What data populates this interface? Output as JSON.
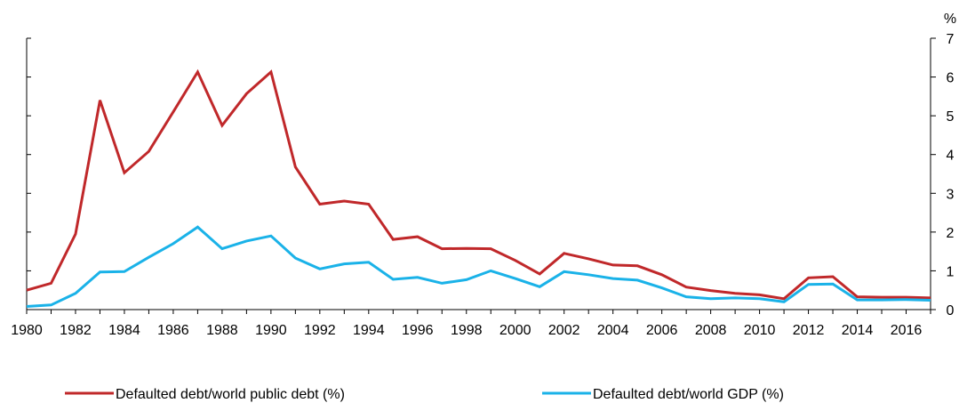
{
  "chart_data": {
    "type": "line",
    "title": "",
    "xlabel": "",
    "ylabel": "%",
    "ylim": [
      0,
      7
    ],
    "y_ticks": [
      "0",
      "1",
      "2",
      "3",
      "4",
      "5",
      "6",
      "7"
    ],
    "x_tick_labels": [
      "1980",
      "1982",
      "1984",
      "1986",
      "1988",
      "1990",
      "1992",
      "1994",
      "1996",
      "1998",
      "2000",
      "2002",
      "2004",
      "2006",
      "2008",
      "2010",
      "2012",
      "2014",
      "2016"
    ],
    "x": [
      1980,
      1981,
      1982,
      1983,
      1984,
      1985,
      1986,
      1987,
      1988,
      1989,
      1990,
      1991,
      1992,
      1993,
      1994,
      1995,
      1996,
      1997,
      1998,
      1999,
      2000,
      2001,
      2002,
      2003,
      2004,
      2005,
      2006,
      2007,
      2008,
      2009,
      2010,
      2011,
      2012,
      2013,
      2014,
      2015,
      2016,
      2017
    ],
    "grid": false,
    "legend_position": "bottom",
    "series": [
      {
        "name": "Defaulted debt/world public debt (%)",
        "color": "#c0282a",
        "values": [
          0.5,
          0.68,
          1.95,
          5.4,
          3.53,
          4.08,
          5.1,
          6.13,
          4.75,
          5.57,
          6.13,
          3.68,
          2.72,
          2.8,
          2.72,
          1.81,
          1.88,
          1.57,
          1.58,
          1.57,
          1.27,
          0.92,
          1.45,
          1.31,
          1.15,
          1.13,
          0.9,
          0.58,
          0.49,
          0.42,
          0.38,
          0.28,
          0.82,
          0.85,
          0.33,
          0.32,
          0.32,
          0.3
        ]
      },
      {
        "name": "Defaulted debt/world GDP (%)",
        "color": "#1ab2e8",
        "values": [
          0.08,
          0.12,
          0.42,
          0.97,
          0.98,
          1.35,
          1.7,
          2.13,
          1.57,
          1.77,
          1.9,
          1.33,
          1.05,
          1.18,
          1.22,
          0.78,
          0.83,
          0.68,
          0.77,
          1.0,
          0.8,
          0.59,
          0.98,
          0.9,
          0.8,
          0.76,
          0.56,
          0.33,
          0.28,
          0.3,
          0.28,
          0.2,
          0.65,
          0.66,
          0.25,
          0.25,
          0.26,
          0.24
        ]
      }
    ]
  }
}
